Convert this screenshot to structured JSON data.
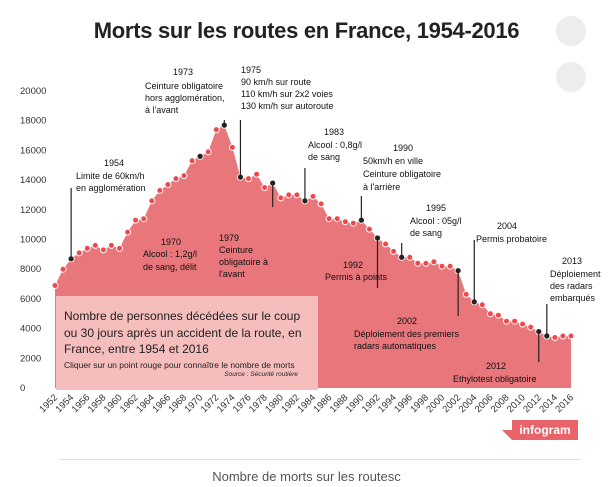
{
  "page": {
    "title": "Morts sur les routes en France, 1954-2016",
    "caption": "Nombre de morts sur les routesc",
    "brand": "infogram"
  },
  "info_box": {
    "main": "Nombre de personnes décédées sur le coup ou 30 jours après un accident de la route, en France, entre 1954 et 2016",
    "hint": "Cliquer sur un point rouge pour connaître le nombre de morts",
    "source": "Source : Sécurité routière"
  },
  "colors": {
    "area_fill": "#e8767b",
    "marker": "#f0474d",
    "marker_stroke": "#ffffff",
    "info_box": "#f6bdbd",
    "brand": "#e8646a",
    "leader": "#222222"
  },
  "chart_data": {
    "type": "area",
    "title": "Morts sur les routes en France, 1954-2016",
    "xlabel": "",
    "ylabel": "",
    "ylim": [
      0,
      20000
    ],
    "yticks": [
      "0",
      "2000",
      "4000",
      "6000",
      "8000",
      "10000",
      "12000",
      "14000",
      "16000",
      "18000",
      "20000"
    ],
    "xlim": [
      1952,
      2016
    ],
    "xticks": [
      "1952",
      "1954",
      "1956",
      "1958",
      "1960",
      "1962",
      "1964",
      "1966",
      "1968",
      "1970",
      "1972",
      "1974",
      "1976",
      "1978",
      "1980",
      "1982",
      "1984",
      "1986",
      "1988",
      "1990",
      "1992",
      "1994",
      "1996",
      "1998",
      "2000",
      "2002",
      "2004",
      "2006",
      "2008",
      "2010",
      "2012",
      "2014",
      "2016"
    ],
    "grid": false,
    "x": [
      1952,
      1953,
      1954,
      1955,
      1956,
      1957,
      1958,
      1959,
      1960,
      1961,
      1962,
      1963,
      1964,
      1965,
      1966,
      1967,
      1968,
      1969,
      1970,
      1971,
      1972,
      1973,
      1974,
      1975,
      1976,
      1977,
      1978,
      1979,
      1980,
      1981,
      1982,
      1983,
      1984,
      1985,
      1986,
      1987,
      1988,
      1989,
      1990,
      1991,
      1992,
      1993,
      1994,
      1995,
      1996,
      1997,
      1998,
      1999,
      2000,
      2001,
      2002,
      2003,
      2004,
      2005,
      2006,
      2007,
      2008,
      2009,
      2010,
      2011,
      2012,
      2013,
      2014,
      2015,
      2016
    ],
    "values": [
      6900,
      8000,
      8700,
      9100,
      9400,
      9600,
      9300,
      9600,
      9400,
      10500,
      11300,
      11400,
      12600,
      13300,
      13700,
      14100,
      14300,
      15300,
      15600,
      15900,
      17400,
      17700,
      16200,
      14200,
      14100,
      14400,
      13500,
      13800,
      12800,
      13000,
      13000,
      12600,
      12900,
      12400,
      11400,
      11400,
      11200,
      11100,
      11300,
      10700,
      10100,
      9700,
      9200,
      8800,
      8800,
      8400,
      8400,
      8500,
      8200,
      8200,
      7900,
      6300,
      5800,
      5600,
      5000,
      4900,
      4500,
      4500,
      4300,
      4100,
      3800,
      3500,
      3400,
      3500,
      3500
    ],
    "annotations": [
      {
        "year": 1954,
        "target_year": 1954,
        "label_year": "1954",
        "text": [
          "Limite de 60km/h",
          "en agglomération"
        ]
      },
      {
        "year": 1973,
        "target_year": 1973,
        "label_year": "1973",
        "text": [
          "Ceinture obligatoire",
          "hors agglomération,",
          "à l'avant"
        ]
      },
      {
        "year": 1975,
        "target_year": 1975,
        "label_year": "1975",
        "text": [
          "90 km/h sur route",
          "110 km/h sur 2x2 voies",
          "130 km/h sur autoroute"
        ]
      },
      {
        "year": 1970,
        "target_year": 1970,
        "label_year": "1970",
        "text": [
          "Alcool : 1,2g/l",
          "de sang, délit"
        ]
      },
      {
        "year": 1979,
        "target_year": 1979,
        "label_year": "1979",
        "text": [
          "Ceinture",
          "obligatoire à",
          "l'avant"
        ]
      },
      {
        "year": 1983,
        "target_year": 1983,
        "label_year": "1983",
        "text": [
          "Alcool : 0,8g/l",
          "de sang"
        ]
      },
      {
        "year": 1990,
        "target_year": 1990,
        "label_year": "1990",
        "text": [
          "50km/h en ville",
          "Ceinture obligatoire",
          "à l'arrière"
        ]
      },
      {
        "year": 1995,
        "target_year": 1995,
        "label_year": "1995",
        "text": [
          "Alcool : 05g/l",
          "de sang"
        ]
      },
      {
        "year": 1992,
        "target_year": 1992,
        "label_year": "1992",
        "text": [
          "Permis à points"
        ]
      },
      {
        "year": 2002,
        "target_year": 2002,
        "label_year": "2002",
        "text": [
          "Déploiement des premiers",
          "radars automatiques"
        ]
      },
      {
        "year": 2004,
        "target_year": 2004,
        "label_year": "2004",
        "text": [
          "Permis probatoire"
        ]
      },
      {
        "year": 2012,
        "target_year": 2012,
        "label_year": "2012",
        "text": [
          "Ethylotest obligatoire"
        ]
      },
      {
        "year": 2013,
        "target_year": 2013,
        "label_year": "2013",
        "text": [
          "Déploiement",
          "des radars",
          "embarqués"
        ]
      }
    ]
  }
}
